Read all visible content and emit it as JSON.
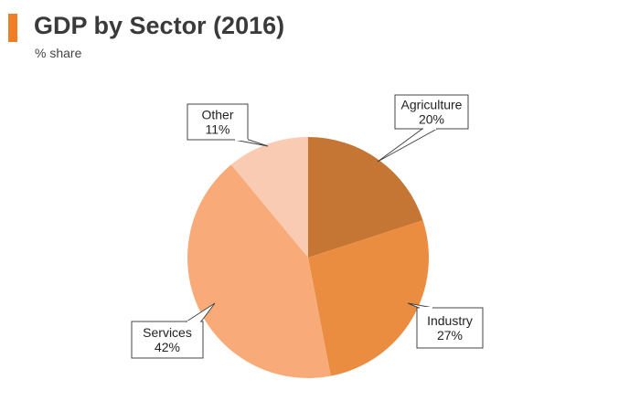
{
  "colors": {
    "accent": "#f07e26",
    "title": "#3a3a3a",
    "label_border": "#444444"
  },
  "chart_data": {
    "type": "pie",
    "title": "GDP by Sector (2016)",
    "subtitle": "% share",
    "start_angle_deg": 0,
    "direction": "clockwise",
    "slices": [
      {
        "name": "Agriculture",
        "value": 20,
        "label": "20%",
        "color": "#c57534"
      },
      {
        "name": "Industry",
        "value": 27,
        "label": "27%",
        "color": "#ea8d40"
      },
      {
        "name": "Services",
        "value": 42,
        "label": "42%",
        "color": "#f8ab78"
      },
      {
        "name": "Other",
        "value": 11,
        "label": "11%",
        "color": "#f9cbb3"
      }
    ]
  }
}
